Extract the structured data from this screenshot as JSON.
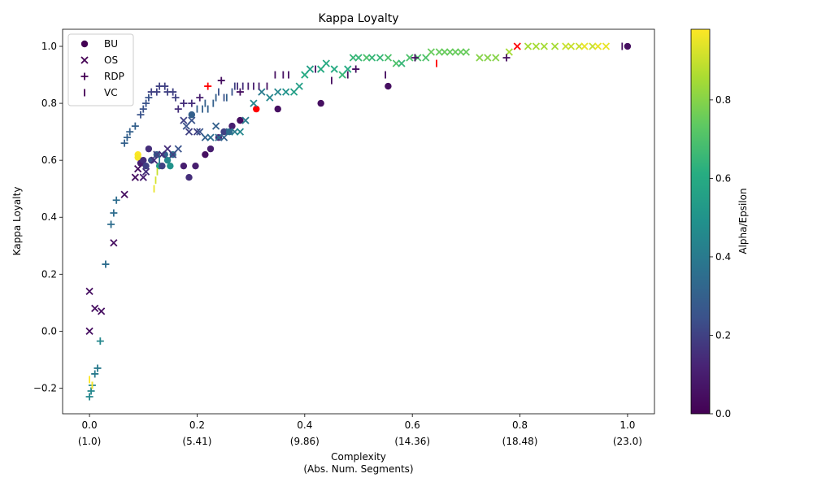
{
  "chart_data": {
    "type": "scatter",
    "title": "Kappa Loyalty",
    "xlabel_line1": "Complexity",
    "xlabel_line2": "(Abs. Num. Segments)",
    "ylabel": "Kappa Loyalty",
    "xlim": [
      -0.05,
      1.05
    ],
    "ylim": [
      -0.29,
      1.06
    ],
    "x_ticks": [
      {
        "value": 0.0,
        "label": "0.0",
        "sub": "(1.0)"
      },
      {
        "value": 0.2,
        "label": "0.2",
        "sub": "(5.41)"
      },
      {
        "value": 0.4,
        "label": "0.4",
        "sub": "(9.86)"
      },
      {
        "value": 0.6,
        "label": "0.6",
        "sub": "(14.36)"
      },
      {
        "value": 0.8,
        "label": "0.8",
        "sub": "(18.48)"
      },
      {
        "value": 1.0,
        "label": "1.0",
        "sub": "(23.0)"
      }
    ],
    "y_ticks": [
      {
        "value": -0.2,
        "label": "−0.2"
      },
      {
        "value": 0.0,
        "label": "0.0"
      },
      {
        "value": 0.2,
        "label": "0.2"
      },
      {
        "value": 0.4,
        "label": "0.4"
      },
      {
        "value": 0.6,
        "label": "0.6"
      },
      {
        "value": 0.8,
        "label": "0.8"
      },
      {
        "value": 1.0,
        "label": "1.0"
      }
    ],
    "legend_position": "upper left",
    "colorbar": {
      "label": "Alpha/Epsilon",
      "range": [
        0.0,
        0.98
      ],
      "ticks": [
        {
          "value": 0.0,
          "label": "0.0"
        },
        {
          "value": 0.2,
          "label": "0.2"
        },
        {
          "value": 0.4,
          "label": "0.4"
        },
        {
          "value": 0.6,
          "label": "0.6"
        },
        {
          "value": 0.8,
          "label": "0.8"
        }
      ],
      "colormap": "viridis"
    },
    "highlight_color": "#ff0000",
    "series": [
      {
        "name": "BU",
        "marker": "circle",
        "legend_color": "#440154",
        "points": [
          [
            0.09,
            0.62,
            0.98
          ],
          [
            0.09,
            0.61,
            0.97
          ],
          [
            0.095,
            0.59,
            0.1
          ],
          [
            0.1,
            0.6,
            0.15
          ],
          [
            0.105,
            0.58,
            0.2
          ],
          [
            0.11,
            0.64,
            0.15
          ],
          [
            0.115,
            0.6,
            0.25
          ],
          [
            0.125,
            0.62,
            0.3
          ],
          [
            0.13,
            0.58,
            0.55
          ],
          [
            0.135,
            0.58,
            0.2
          ],
          [
            0.14,
            0.62,
            0.3
          ],
          [
            0.145,
            0.6,
            0.45
          ],
          [
            0.15,
            0.58,
            0.5
          ],
          [
            0.155,
            0.62,
            0.35
          ],
          [
            0.175,
            0.58,
            0.1
          ],
          [
            0.185,
            0.54,
            0.15
          ],
          [
            0.19,
            0.76,
            0.3
          ],
          [
            0.197,
            0.58,
            0.1
          ],
          [
            0.215,
            0.62,
            0.05
          ],
          [
            0.225,
            0.64,
            0.1
          ],
          [
            0.24,
            0.68,
            0.15
          ],
          [
            0.25,
            0.7,
            0.2
          ],
          [
            0.26,
            0.7,
            0.35
          ],
          [
            0.265,
            0.72,
            0.1
          ],
          [
            0.28,
            0.74,
            0.05
          ],
          [
            0.31,
            0.78,
            -1
          ],
          [
            0.35,
            0.78,
            0.05
          ],
          [
            0.43,
            0.8,
            0.05
          ],
          [
            0.555,
            0.86,
            0.05
          ],
          [
            1.0,
            1.0,
            0.05
          ]
        ]
      },
      {
        "name": "OS",
        "marker": "x",
        "legend_color": "#440154",
        "points": [
          [
            0.0,
            0.14,
            0.05
          ],
          [
            0.0,
            0.0,
            0.05
          ],
          [
            0.01,
            0.08,
            0.05
          ],
          [
            0.022,
            0.07,
            0.05
          ],
          [
            0.045,
            0.31,
            0.05
          ],
          [
            0.065,
            0.48,
            0.05
          ],
          [
            0.085,
            0.54,
            0.05
          ],
          [
            0.09,
            0.57,
            0.05
          ],
          [
            0.1,
            0.54,
            0.1
          ],
          [
            0.105,
            0.56,
            0.15
          ],
          [
            0.12,
            0.6,
            0.15
          ],
          [
            0.125,
            0.62,
            0.2
          ],
          [
            0.135,
            0.62,
            0.15
          ],
          [
            0.145,
            0.64,
            0.15
          ],
          [
            0.155,
            0.62,
            0.2
          ],
          [
            0.165,
            0.64,
            0.25
          ],
          [
            0.175,
            0.74,
            0.2
          ],
          [
            0.18,
            0.72,
            0.25
          ],
          [
            0.185,
            0.7,
            0.2
          ],
          [
            0.19,
            0.74,
            0.25
          ],
          [
            0.2,
            0.7,
            0.2
          ],
          [
            0.205,
            0.7,
            0.25
          ],
          [
            0.215,
            0.68,
            0.3
          ],
          [
            0.225,
            0.68,
            0.35
          ],
          [
            0.235,
            0.72,
            0.3
          ],
          [
            0.24,
            0.68,
            0.35
          ],
          [
            0.25,
            0.68,
            0.3
          ],
          [
            0.26,
            0.7,
            0.35
          ],
          [
            0.27,
            0.7,
            0.4
          ],
          [
            0.28,
            0.7,
            0.45
          ],
          [
            0.29,
            0.74,
            0.4
          ],
          [
            0.305,
            0.8,
            0.45
          ],
          [
            0.32,
            0.84,
            0.4
          ],
          [
            0.335,
            0.82,
            0.45
          ],
          [
            0.35,
            0.84,
            0.45
          ],
          [
            0.365,
            0.84,
            0.5
          ],
          [
            0.38,
            0.84,
            0.55
          ],
          [
            0.39,
            0.86,
            0.55
          ],
          [
            0.4,
            0.9,
            0.6
          ],
          [
            0.41,
            0.92,
            0.55
          ],
          [
            0.43,
            0.92,
            0.6
          ],
          [
            0.44,
            0.94,
            0.6
          ],
          [
            0.455,
            0.92,
            0.6
          ],
          [
            0.47,
            0.9,
            0.65
          ],
          [
            0.48,
            0.92,
            0.6
          ],
          [
            0.49,
            0.96,
            0.65
          ],
          [
            0.5,
            0.96,
            0.65
          ],
          [
            0.515,
            0.96,
            0.7
          ],
          [
            0.525,
            0.96,
            0.65
          ],
          [
            0.54,
            0.96,
            0.65
          ],
          [
            0.555,
            0.96,
            0.7
          ],
          [
            0.57,
            0.94,
            0.7
          ],
          [
            0.58,
            0.94,
            0.65
          ],
          [
            0.595,
            0.96,
            0.7
          ],
          [
            0.61,
            0.96,
            0.7
          ],
          [
            0.625,
            0.96,
            0.7
          ],
          [
            0.635,
            0.98,
            0.75
          ],
          [
            0.65,
            0.98,
            0.75
          ],
          [
            0.66,
            0.98,
            0.75
          ],
          [
            0.67,
            0.98,
            0.75
          ],
          [
            0.68,
            0.98,
            0.75
          ],
          [
            0.69,
            0.98,
            0.75
          ],
          [
            0.7,
            0.98,
            0.75
          ],
          [
            0.725,
            0.96,
            0.8
          ],
          [
            0.74,
            0.96,
            0.8
          ],
          [
            0.755,
            0.96,
            0.8
          ],
          [
            0.78,
            0.98,
            0.85
          ],
          [
            0.795,
            1.0,
            -1
          ],
          [
            0.815,
            1.0,
            0.85
          ],
          [
            0.83,
            1.0,
            0.85
          ],
          [
            0.845,
            1.0,
            0.85
          ],
          [
            0.865,
            1.0,
            0.85
          ],
          [
            0.885,
            1.0,
            0.9
          ],
          [
            0.895,
            1.0,
            0.9
          ],
          [
            0.91,
            1.0,
            0.9
          ],
          [
            0.92,
            1.0,
            0.95
          ],
          [
            0.935,
            1.0,
            0.9
          ],
          [
            0.945,
            1.0,
            0.95
          ],
          [
            0.96,
            1.0,
            0.95
          ]
        ]
      },
      {
        "name": "RDP",
        "marker": "plus",
        "legend_color": "#440154",
        "points": [
          [
            0.0,
            -0.23,
            0.45
          ],
          [
            0.003,
            -0.21,
            0.45
          ],
          [
            0.005,
            -0.19,
            0.45
          ],
          [
            0.01,
            -0.15,
            0.4
          ],
          [
            0.015,
            -0.13,
            0.4
          ],
          [
            0.02,
            -0.035,
            0.45
          ],
          [
            0.03,
            0.235,
            0.35
          ],
          [
            0.04,
            0.375,
            0.35
          ],
          [
            0.045,
            0.415,
            0.35
          ],
          [
            0.05,
            0.46,
            0.35
          ],
          [
            0.065,
            0.66,
            0.3
          ],
          [
            0.07,
            0.68,
            0.3
          ],
          [
            0.075,
            0.7,
            0.3
          ],
          [
            0.085,
            0.72,
            0.3
          ],
          [
            0.095,
            0.76,
            0.25
          ],
          [
            0.1,
            0.78,
            0.25
          ],
          [
            0.105,
            0.8,
            0.25
          ],
          [
            0.11,
            0.82,
            0.25
          ],
          [
            0.115,
            0.84,
            0.2
          ],
          [
            0.125,
            0.84,
            0.2
          ],
          [
            0.13,
            0.86,
            0.2
          ],
          [
            0.14,
            0.86,
            0.2
          ],
          [
            0.145,
            0.84,
            0.2
          ],
          [
            0.155,
            0.84,
            0.2
          ],
          [
            0.16,
            0.82,
            0.2
          ],
          [
            0.165,
            0.78,
            0.15
          ],
          [
            0.175,
            0.8,
            0.15
          ],
          [
            0.19,
            0.8,
            0.15
          ],
          [
            0.205,
            0.82,
            0.1
          ],
          [
            0.22,
            0.86,
            -1
          ],
          [
            0.245,
            0.88,
            0.05
          ],
          [
            0.28,
            0.84,
            0.05
          ],
          [
            0.495,
            0.92,
            0.05
          ],
          [
            0.605,
            0.96,
            0.05
          ],
          [
            0.775,
            0.96,
            0.05
          ]
        ]
      },
      {
        "name": "VC",
        "marker": "vline",
        "legend_color": "#440154",
        "points": [
          [
            0.0,
            -0.17,
            0.98
          ],
          [
            0.005,
            -0.19,
            0.98
          ],
          [
            0.12,
            0.5,
            0.95
          ],
          [
            0.123,
            0.53,
            0.92
          ],
          [
            0.126,
            0.56,
            0.9
          ],
          [
            0.13,
            0.6,
            0.4
          ],
          [
            0.2,
            0.78,
            0.3
          ],
          [
            0.21,
            0.78,
            0.3
          ],
          [
            0.215,
            0.8,
            0.3
          ],
          [
            0.22,
            0.78,
            0.3
          ],
          [
            0.23,
            0.8,
            0.3
          ],
          [
            0.235,
            0.82,
            0.3
          ],
          [
            0.24,
            0.84,
            0.25
          ],
          [
            0.25,
            0.82,
            0.25
          ],
          [
            0.255,
            0.82,
            0.3
          ],
          [
            0.265,
            0.84,
            0.25
          ],
          [
            0.27,
            0.86,
            0.2
          ],
          [
            0.275,
            0.86,
            0.15
          ],
          [
            0.285,
            0.86,
            0.15
          ],
          [
            0.295,
            0.86,
            0.1
          ],
          [
            0.305,
            0.86,
            0.1
          ],
          [
            0.315,
            0.86,
            0.1
          ],
          [
            0.33,
            0.86,
            0.05
          ],
          [
            0.345,
            0.9,
            0.05
          ],
          [
            0.36,
            0.9,
            0.05
          ],
          [
            0.37,
            0.9,
            0.05
          ],
          [
            0.42,
            0.92,
            0.05
          ],
          [
            0.45,
            0.88,
            0.05
          ],
          [
            0.48,
            0.9,
            0.05
          ],
          [
            0.55,
            0.9,
            0.05
          ],
          [
            0.645,
            0.94,
            -1
          ],
          [
            0.99,
            1.0,
            0.05
          ]
        ]
      }
    ]
  }
}
